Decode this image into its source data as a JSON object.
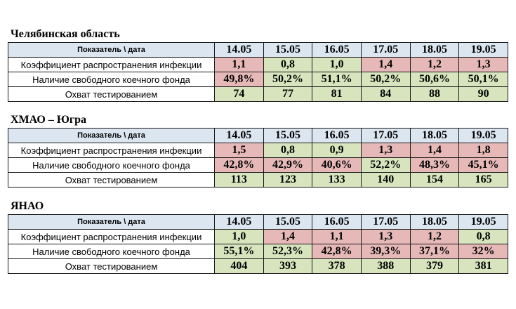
{
  "colors": {
    "header": "#dce6f1",
    "bad": "#e6b9b8",
    "good": "#d7e4bd"
  },
  "header_label": "Показатель \\ дата",
  "dates": [
    "14.05",
    "15.05",
    "16.05",
    "17.05",
    "18.05",
    "19.05"
  ],
  "row_labels": {
    "r0": "Коэффициент распространения инфекции",
    "r1": "Наличие свободного коечного фонда",
    "r2": "Охват тестированием"
  },
  "regions": [
    {
      "title": "Челябинская область",
      "rows": [
        {
          "values": [
            "1,1",
            "0,8",
            "1,0",
            "1,4",
            "1,2",
            "1,3"
          ],
          "status": [
            "red",
            "green",
            "green",
            "red",
            "red",
            "red"
          ]
        },
        {
          "values": [
            "49,8%",
            "50,2%",
            "51,1%",
            "50,2%",
            "50,6%",
            "50,1%"
          ],
          "status": [
            "red",
            "green",
            "green",
            "green",
            "green",
            "green"
          ]
        },
        {
          "values": [
            "74",
            "77",
            "81",
            "84",
            "88",
            "90"
          ],
          "status": [
            "green",
            "green",
            "green",
            "green",
            "green",
            "green"
          ]
        }
      ]
    },
    {
      "title": "ХМАО – Югра",
      "rows": [
        {
          "values": [
            "1,5",
            "0,8",
            "0,9",
            "1,3",
            "1,4",
            "1,8"
          ],
          "status": [
            "red",
            "green",
            "green",
            "red",
            "red",
            "red"
          ]
        },
        {
          "values": [
            "42,8%",
            "42,9%",
            "40,6%",
            "52,2%",
            "48,3%",
            "45,1%"
          ],
          "status": [
            "red",
            "red",
            "red",
            "green",
            "red",
            "red"
          ]
        },
        {
          "values": [
            "113",
            "123",
            "133",
            "140",
            "154",
            "165"
          ],
          "status": [
            "green",
            "green",
            "green",
            "green",
            "green",
            "green"
          ]
        }
      ]
    },
    {
      "title": "ЯНАО",
      "rows": [
        {
          "values": [
            "1,0",
            "1,4",
            "1,1",
            "1,3",
            "1,2",
            "0,8"
          ],
          "status": [
            "green",
            "red",
            "red",
            "red",
            "red",
            "green"
          ]
        },
        {
          "values": [
            "55,1%",
            "52,3%",
            "42,8%",
            "39,3%",
            "37,1%",
            "32%"
          ],
          "status": [
            "green",
            "green",
            "red",
            "red",
            "red",
            "red"
          ]
        },
        {
          "values": [
            "404",
            "393",
            "378",
            "388",
            "379",
            "381"
          ],
          "status": [
            "green",
            "green",
            "green",
            "green",
            "green",
            "green"
          ]
        }
      ]
    }
  ]
}
